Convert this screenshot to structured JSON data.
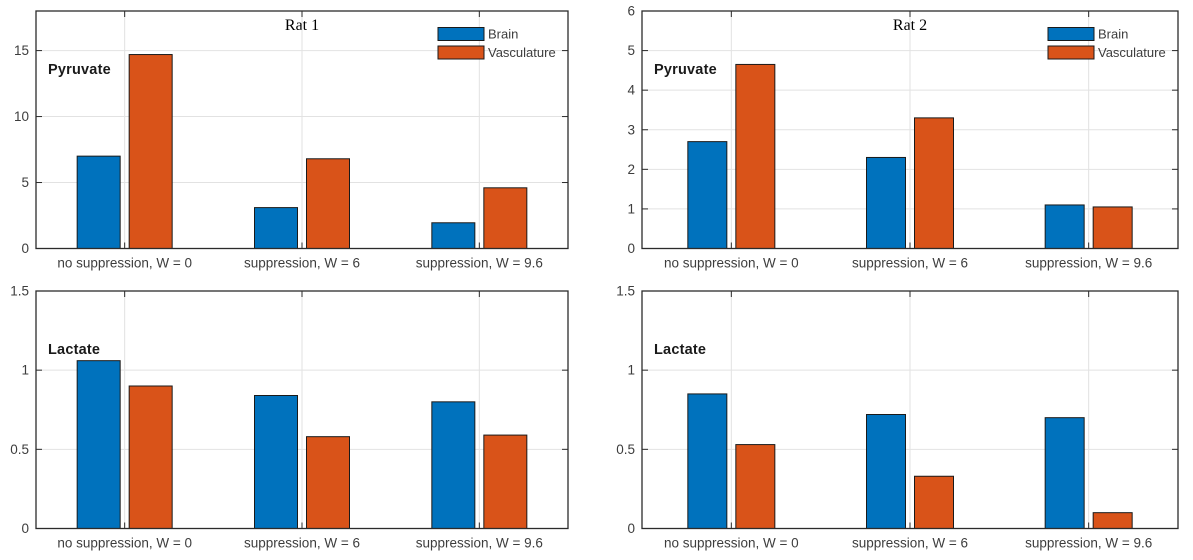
{
  "figure": {
    "background": "#ffffff"
  },
  "palette": {
    "brain_color": "#0072BD",
    "vasculature_color": "#D95319",
    "bar_edge_color": "#1a1a1a",
    "axis_color": "#2b2b2b",
    "grid_color": "#e2e2e2",
    "tick_label_color": "#3d3d3d",
    "title_color": "#000000"
  },
  "legend": {
    "position": "top-right-inside",
    "entries": [
      "Brain",
      "Vasculature"
    ]
  },
  "chart_data": [
    {
      "type": "bar",
      "title": "Rat 1",
      "row_label": "Pyruvate",
      "categories": [
        "no suppression, W = 0",
        "suppression, W = 6",
        "suppression, W = 9.6"
      ],
      "series": [
        {
          "name": "Brain",
          "color": "#0072BD",
          "values": [
            7.0,
            3.1,
            1.95
          ]
        },
        {
          "name": "Vasculature",
          "color": "#D95319",
          "values": [
            14.7,
            6.8,
            4.6
          ]
        }
      ],
      "ylim": [
        0,
        18
      ],
      "yticks": [
        0,
        5,
        10,
        15
      ],
      "ytick_labels": [
        "0",
        "5",
        "10",
        "15"
      ],
      "grid": true,
      "legend_visible": true,
      "title_visible": true
    },
    {
      "type": "bar",
      "title": "Rat 2",
      "row_label": "Pyruvate",
      "categories": [
        "no suppression, W = 0",
        "suppression, W = 6",
        "suppression, W = 9.6"
      ],
      "series": [
        {
          "name": "Brain",
          "color": "#0072BD",
          "values": [
            2.7,
            2.3,
            1.1
          ]
        },
        {
          "name": "Vasculature",
          "color": "#D95319",
          "values": [
            4.65,
            3.3,
            1.05
          ]
        }
      ],
      "ylim": [
        0,
        6
      ],
      "yticks": [
        0,
        1,
        2,
        3,
        4,
        5,
        6
      ],
      "ytick_labels": [
        "0",
        "1",
        "2",
        "3",
        "4",
        "5",
        "6"
      ],
      "grid": true,
      "legend_visible": true,
      "title_visible": true
    },
    {
      "type": "bar",
      "row_label": "Lactate",
      "categories": [
        "no suppression, W = 0",
        "suppression, W = 6",
        "suppression, W = 9.6"
      ],
      "series": [
        {
          "name": "Brain",
          "color": "#0072BD",
          "values": [
            1.06,
            0.84,
            0.8
          ]
        },
        {
          "name": "Vasculature",
          "color": "#D95319",
          "values": [
            0.9,
            0.58,
            0.59
          ]
        }
      ],
      "ylim": [
        0,
        1.5
      ],
      "yticks": [
        0,
        0.5,
        1,
        1.5
      ],
      "ytick_labels": [
        "0",
        "0.5",
        "1",
        "1.5"
      ],
      "grid": true,
      "legend_visible": false,
      "title_visible": false
    },
    {
      "type": "bar",
      "row_label": "Lactate",
      "categories": [
        "no suppression, W = 0",
        "suppression, W = 6",
        "suppression, W = 9.6"
      ],
      "series": [
        {
          "name": "Brain",
          "color": "#0072BD",
          "values": [
            0.85,
            0.72,
            0.7
          ]
        },
        {
          "name": "Vasculature",
          "color": "#D95319",
          "values": [
            0.53,
            0.33,
            0.1
          ]
        }
      ],
      "ylim": [
        0,
        1.5
      ],
      "yticks": [
        0,
        0.5,
        1,
        1.5
      ],
      "ytick_labels": [
        "0",
        "0.5",
        "1",
        "1.5"
      ],
      "grid": true,
      "legend_visible": false,
      "title_visible": false
    }
  ]
}
